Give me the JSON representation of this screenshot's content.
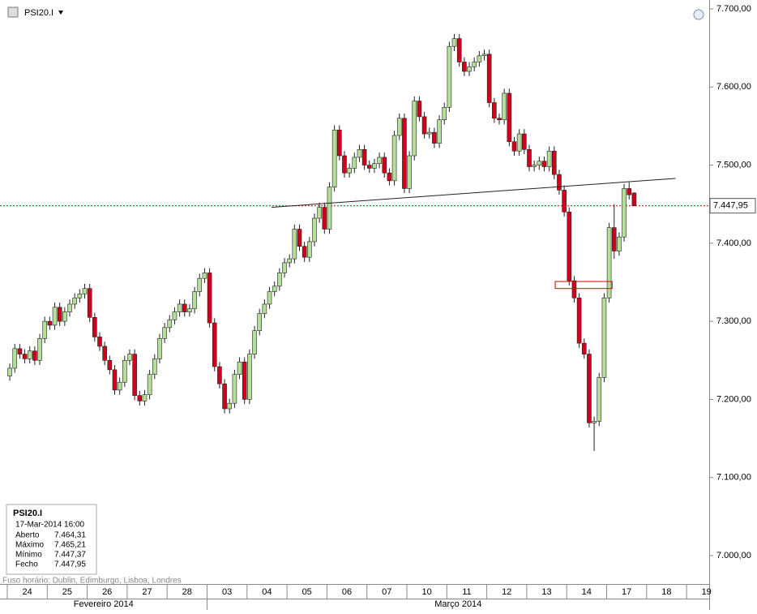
{
  "chart_data": {
    "type": "candlestick",
    "title": "PSI20.I",
    "categories": [
      "24",
      "25",
      "26",
      "27",
      "28",
      "03",
      "04",
      "05",
      "06",
      "07",
      "10",
      "11",
      "12",
      "13",
      "14",
      "17",
      "18",
      "19"
    ],
    "months": [
      {
        "label": "Fevereiro 2014",
        "from": 0,
        "to": 5
      },
      {
        "label": "Março 2014",
        "from": 5,
        "to": 18
      }
    ],
    "candles_per_day": 8,
    "open": [
      7230,
      7240,
      7265,
      7258,
      7252,
      7262,
      7250,
      7278,
      7300,
      7295,
      7318,
      7300,
      7312,
      7322,
      7330,
      7335,
      7342,
      7305,
      7280,
      7268,
      7250,
      7238,
      7212,
      7222,
      7250,
      7258,
      7205,
      7198,
      7206,
      7232,
      7252,
      7278,
      7292,
      7302,
      7312,
      7322,
      7312,
      7316,
      7338,
      7355,
      7362,
      7298,
      7242,
      7220,
      7188,
      7195,
      7232,
      7248,
      7200,
      7258,
      7288,
      7310,
      7322,
      7338,
      7345,
      7362,
      7375,
      7380,
      7418,
      7396,
      7382,
      7402,
      7432,
      7446,
      7418,
      7472,
      7545,
      7512,
      7490,
      7496,
      7510,
      7520,
      7500,
      7496,
      7502,
      7510,
      7490,
      7480,
      7538,
      7560,
      7470,
      7512,
      7582,
      7562,
      7540,
      7542,
      7528,
      7558,
      7574,
      7652,
      7662,
      7632,
      7620,
      7626,
      7632,
      7640,
      7642,
      7580,
      7560,
      7558,
      7592,
      7530,
      7518,
      7540,
      7520,
      7498,
      7500,
      7505,
      7498,
      7518,
      7488,
      7468,
      7440,
      7352,
      7330,
      7272,
      7258,
      7170,
      7172,
      7228,
      7330,
      7420,
      7390,
      7408,
      7470,
      7464.31
    ],
    "high": [
      7246,
      7271,
      7271,
      7264,
      7268,
      7268,
      7284,
      7306,
      7306,
      7324,
      7324,
      7318,
      7328,
      7336,
      7341,
      7348,
      7348,
      7311,
      7286,
      7274,
      7256,
      7244,
      7228,
      7256,
      7264,
      7264,
      7211,
      7212,
      7238,
      7258,
      7284,
      7298,
      7308,
      7318,
      7328,
      7328,
      7322,
      7344,
      7361,
      7368,
      7368,
      7304,
      7248,
      7226,
      7201,
      7238,
      7254,
      7254,
      7264,
      7294,
      7316,
      7328,
      7344,
      7351,
      7368,
      7381,
      7386,
      7424,
      7424,
      7402,
      7408,
      7438,
      7452,
      7452,
      7478,
      7551,
      7551,
      7518,
      7502,
      7516,
      7526,
      7526,
      7506,
      7508,
      7516,
      7516,
      7496,
      7544,
      7566,
      7566,
      7518,
      7588,
      7588,
      7568,
      7548,
      7548,
      7564,
      7580,
      7658,
      7668,
      7668,
      7638,
      7632,
      7638,
      7646,
      7648,
      7648,
      7586,
      7566,
      7598,
      7598,
      7536,
      7546,
      7546,
      7526,
      7506,
      7511,
      7511,
      7524,
      7524,
      7494,
      7474,
      7446,
      7358,
      7336,
      7278,
      7264,
      7178,
      7234,
      7336,
      7426,
      7450,
      7414,
      7476,
      7478,
      7465.21
    ],
    "low": [
      7224,
      7234,
      7252,
      7246,
      7246,
      7244,
      7244,
      7272,
      7289,
      7289,
      7294,
      7294,
      7306,
      7316,
      7324,
      7329,
      7299,
      7274,
      7262,
      7244,
      7232,
      7206,
      7206,
      7216,
      7244,
      7199,
      7192,
      7192,
      7200,
      7226,
      7246,
      7272,
      7286,
      7296,
      7306,
      7306,
      7306,
      7310,
      7332,
      7349,
      7292,
      7236,
      7214,
      7182,
      7182,
      7189,
      7226,
      7194,
      7194,
      7252,
      7282,
      7304,
      7316,
      7332,
      7339,
      7356,
      7369,
      7374,
      7390,
      7376,
      7376,
      7396,
      7426,
      7412,
      7412,
      7466,
      7506,
      7484,
      7484,
      7490,
      7504,
      7494,
      7490,
      7490,
      7496,
      7484,
      7474,
      7474,
      7532,
      7464,
      7464,
      7506,
      7556,
      7534,
      7534,
      7522,
      7522,
      7552,
      7568,
      7646,
      7626,
      7614,
      7614,
      7620,
      7626,
      7634,
      7574,
      7554,
      7552,
      7552,
      7524,
      7512,
      7512,
      7514,
      7492,
      7492,
      7494,
      7492,
      7492,
      7482,
      7462,
      7434,
      7346,
      7324,
      7266,
      7252,
      7164,
      7134,
      7166,
      7222,
      7324,
      7380,
      7384,
      7402,
      7456,
      7447.37
    ],
    "close": [
      7240,
      7265,
      7258,
      7252,
      7262,
      7250,
      7278,
      7300,
      7295,
      7318,
      7300,
      7312,
      7322,
      7330,
      7335,
      7342,
      7305,
      7280,
      7268,
      7250,
      7238,
      7212,
      7222,
      7250,
      7258,
      7205,
      7198,
      7206,
      7232,
      7252,
      7278,
      7292,
      7302,
      7312,
      7322,
      7312,
      7316,
      7338,
      7355,
      7362,
      7298,
      7242,
      7220,
      7188,
      7195,
      7232,
      7248,
      7200,
      7258,
      7288,
      7310,
      7322,
      7338,
      7345,
      7362,
      7375,
      7380,
      7418,
      7396,
      7382,
      7402,
      7432,
      7446,
      7418,
      7472,
      7545,
      7512,
      7490,
      7496,
      7510,
      7520,
      7500,
      7496,
      7502,
      7510,
      7490,
      7480,
      7538,
      7560,
      7470,
      7512,
      7582,
      7562,
      7540,
      7542,
      7528,
      7558,
      7574,
      7652,
      7662,
      7632,
      7620,
      7626,
      7632,
      7640,
      7642,
      7580,
      7560,
      7558,
      7592,
      7530,
      7518,
      7540,
      7520,
      7498,
      7500,
      7505,
      7498,
      7518,
      7488,
      7468,
      7440,
      7352,
      7330,
      7272,
      7258,
      7170,
      7172,
      7228,
      7330,
      7420,
      7390,
      7408,
      7470,
      7462,
      7447.95
    ],
    "up_color": "#b5e09a",
    "down_color": "#d0021b",
    "ylim": [
      6960,
      7720
    ],
    "yticks": [
      {
        "value": 7000,
        "label": "7.000,00"
      },
      {
        "value": 7100,
        "label": "7.100,00"
      },
      {
        "value": 7200,
        "label": "7.200,00"
      },
      {
        "value": 7300,
        "label": "7.300,00"
      },
      {
        "value": 7400,
        "label": "7.400,00"
      },
      {
        "value": 7500,
        "label": "7.500,00"
      },
      {
        "value": 7600,
        "label": "7.600,00"
      },
      {
        "value": 7700,
        "label": "7.700,00"
      }
    ],
    "last_price": {
      "value": 7447.95,
      "label": "7.447,95"
    },
    "trendline": {
      "x": [
        52.4,
        133.3
      ],
      "y": [
        7446,
        7483
      ]
    },
    "highlight_box": {
      "x": [
        109.2,
        120.6
      ],
      "y": [
        7351,
        7342
      ]
    },
    "info": {
      "symbol": "PSI20.I",
      "date": "17-Mar-2014 16:00",
      "rows": [
        [
          "Aberto",
          "7.464,31"
        ],
        [
          "Máximo",
          "7.465,21"
        ],
        [
          "Mínimo",
          "7.447,37"
        ],
        [
          "Fecho",
          "7.447,95"
        ]
      ]
    },
    "timezone": "Fuso horário: Dublin, Edimburgo, Lisboa, Londres"
  }
}
